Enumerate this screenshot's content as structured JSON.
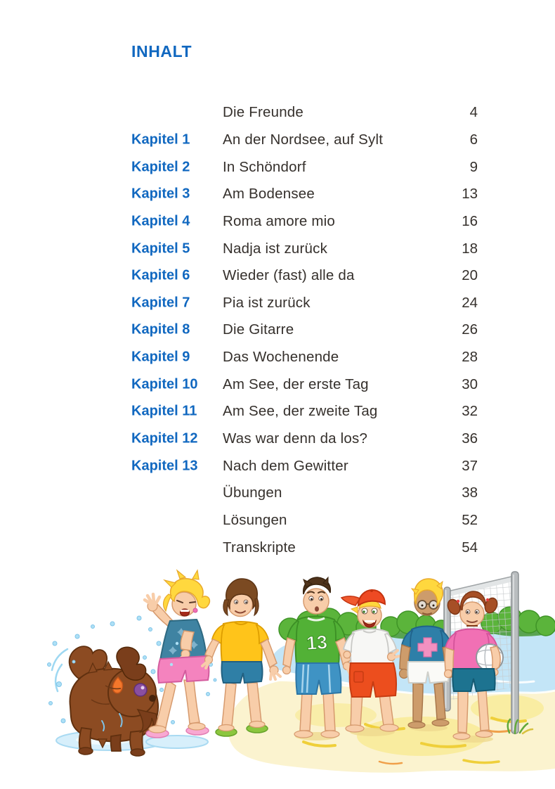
{
  "page": {
    "title": "INHALT",
    "accent_color": "#1168C0",
    "text_color": "#35302C"
  },
  "toc": {
    "rows": [
      {
        "chapter": "",
        "title": "Die Freunde",
        "page": "4"
      },
      {
        "chapter": "Kapitel 1",
        "title": "An der Nordsee, auf Sylt",
        "page": "6"
      },
      {
        "chapter": "Kapitel 2",
        "title": "In Schöndorf",
        "page": "9"
      },
      {
        "chapter": "Kapitel 3",
        "title": "Am Bodensee",
        "page": "13"
      },
      {
        "chapter": "Kapitel 4",
        "title": "Roma amore mio",
        "page": "16"
      },
      {
        "chapter": "Kapitel 5",
        "title": "Nadja ist zurück",
        "page": "18"
      },
      {
        "chapter": "Kapitel 6",
        "title": "Wieder (fast) alle da",
        "page": "20"
      },
      {
        "chapter": "Kapitel 7",
        "title": "Pia ist zurück",
        "page": "24"
      },
      {
        "chapter": "Kapitel 8",
        "title": "Die Gitarre",
        "page": "26"
      },
      {
        "chapter": "Kapitel 9",
        "title": "Das Wochenende",
        "page": "28"
      },
      {
        "chapter": "Kapitel 10",
        "title": "Am See, der erste Tag",
        "page": "30"
      },
      {
        "chapter": "Kapitel 11",
        "title": "Am See, der zweite Tag",
        "page": "32"
      },
      {
        "chapter": "Kapitel 12",
        "title": "Was war denn da los?",
        "page": "36"
      },
      {
        "chapter": "Kapitel 13",
        "title": "Nach dem Gewitter",
        "page": "37"
      },
      {
        "chapter": "",
        "title": "Übungen",
        "page": "38"
      },
      {
        "chapter": "",
        "title": "Lösungen",
        "page": "52"
      },
      {
        "chapter": "",
        "title": "Transkripte",
        "page": "54"
      }
    ]
  },
  "illustration": {
    "scene": "beach-volleyball-with-friends",
    "jersey_number": "13",
    "figures": [
      "wet-dog-shaking-water",
      "blonde-girl-splashed",
      "brunette-girl",
      "boy-green-jersey-13",
      "boy-red-cap-laughing",
      "boy-glasses-tanned",
      "girl-pigtails-holding-volleyball",
      "volleyball-net"
    ]
  }
}
